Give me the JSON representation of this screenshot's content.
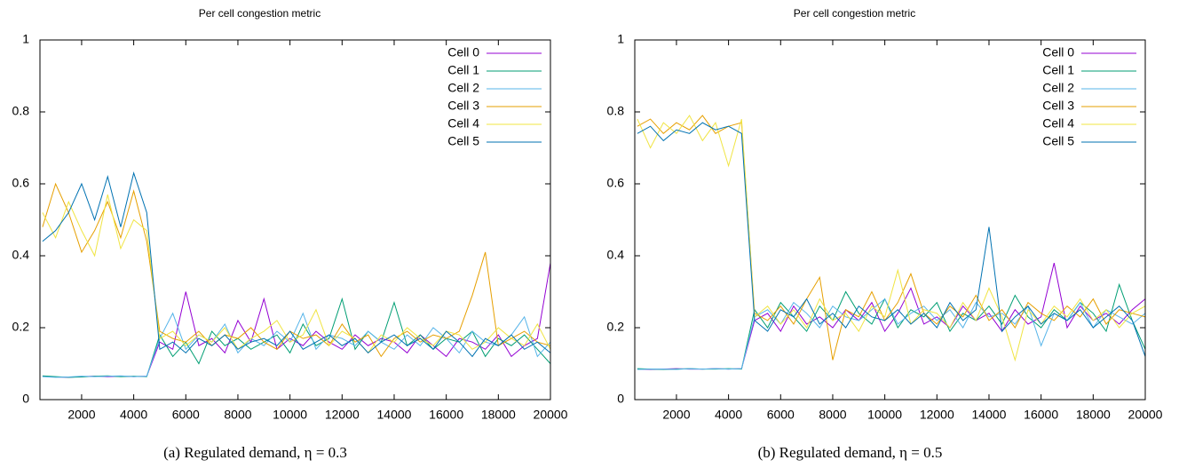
{
  "chart_data": [
    {
      "type": "line",
      "title": "Per cell congestion metric",
      "caption": "(a) Regulated demand, η = 0.3",
      "x": [
        500,
        1000,
        1500,
        2000,
        2500,
        3000,
        3500,
        4000,
        4500,
        5000,
        5500,
        6000,
        6500,
        7000,
        7500,
        8000,
        8500,
        9000,
        9500,
        10000,
        10500,
        11000,
        11500,
        12000,
        12500,
        13000,
        13500,
        14000,
        14500,
        15000,
        15500,
        16000,
        16500,
        17000,
        17500,
        18000,
        18500,
        19000,
        19500,
        20000
      ],
      "xlim": [
        400,
        20000
      ],
      "xticks": [
        2000,
        4000,
        6000,
        8000,
        10000,
        12000,
        14000,
        16000,
        18000,
        20000
      ],
      "ylim": [
        0,
        1
      ],
      "yticks": [
        0,
        0.2,
        0.4,
        0.6,
        0.8,
        1
      ],
      "legend": "top-right",
      "series": [
        {
          "name": "Cell 0",
          "color": "#9400d3",
          "values": [
            0.065,
            0.063,
            0.062,
            0.064,
            0.065,
            0.064,
            0.065,
            0.064,
            0.065,
            0.16,
            0.14,
            0.3,
            0.15,
            0.17,
            0.13,
            0.22,
            0.16,
            0.28,
            0.14,
            0.17,
            0.15,
            0.19,
            0.16,
            0.14,
            0.18,
            0.15,
            0.17,
            0.16,
            0.13,
            0.18,
            0.15,
            0.12,
            0.17,
            0.16,
            0.14,
            0.18,
            0.12,
            0.15,
            0.17,
            0.38
          ]
        },
        {
          "name": "Cell 1",
          "color": "#009e73",
          "values": [
            0.066,
            0.064,
            0.062,
            0.063,
            0.065,
            0.066,
            0.064,
            0.065,
            0.064,
            0.18,
            0.12,
            0.16,
            0.1,
            0.19,
            0.15,
            0.17,
            0.14,
            0.16,
            0.18,
            0.13,
            0.21,
            0.15,
            0.17,
            0.28,
            0.14,
            0.19,
            0.16,
            0.27,
            0.15,
            0.18,
            0.14,
            0.17,
            0.16,
            0.19,
            0.12,
            0.17,
            0.15,
            0.18,
            0.14,
            0.1
          ]
        },
        {
          "name": "Cell 2",
          "color": "#56b4e9",
          "values": [
            0.064,
            0.062,
            0.063,
            0.065,
            0.064,
            0.065,
            0.066,
            0.064,
            0.065,
            0.17,
            0.24,
            0.14,
            0.18,
            0.16,
            0.21,
            0.13,
            0.17,
            0.15,
            0.19,
            0.16,
            0.24,
            0.14,
            0.18,
            0.17,
            0.15,
            0.19,
            0.16,
            0.14,
            0.18,
            0.15,
            0.2,
            0.17,
            0.13,
            0.19,
            0.16,
            0.15,
            0.18,
            0.23,
            0.12,
            0.16
          ]
        },
        {
          "name": "Cell 3",
          "color": "#e69f00",
          "values": [
            0.48,
            0.6,
            0.52,
            0.41,
            0.47,
            0.55,
            0.45,
            0.58,
            0.44,
            0.19,
            0.17,
            0.16,
            0.19,
            0.15,
            0.18,
            0.17,
            0.2,
            0.16,
            0.14,
            0.19,
            0.17,
            0.18,
            0.15,
            0.21,
            0.16,
            0.18,
            0.12,
            0.17,
            0.19,
            0.16,
            0.18,
            0.17,
            0.19,
            0.29,
            0.41,
            0.15,
            0.17,
            0.19,
            0.16,
            0.15
          ]
        },
        {
          "name": "Cell 4",
          "color": "#f0e442",
          "values": [
            0.52,
            0.45,
            0.55,
            0.47,
            0.4,
            0.57,
            0.42,
            0.5,
            0.47,
            0.17,
            0.19,
            0.15,
            0.18,
            0.16,
            0.2,
            0.14,
            0.17,
            0.19,
            0.22,
            0.16,
            0.18,
            0.25,
            0.15,
            0.19,
            0.17,
            0.13,
            0.18,
            0.16,
            0.2,
            0.17,
            0.15,
            0.19,
            0.18,
            0.14,
            0.16,
            0.2,
            0.17,
            0.15,
            0.21,
            0.14
          ]
        },
        {
          "name": "Cell 5",
          "color": "#0072b2",
          "values": [
            0.44,
            0.47,
            0.52,
            0.6,
            0.5,
            0.62,
            0.48,
            0.63,
            0.52,
            0.14,
            0.16,
            0.13,
            0.17,
            0.15,
            0.18,
            0.14,
            0.16,
            0.17,
            0.15,
            0.19,
            0.14,
            0.16,
            0.18,
            0.15,
            0.17,
            0.13,
            0.16,
            0.18,
            0.15,
            0.17,
            0.14,
            0.19,
            0.16,
            0.12,
            0.17,
            0.15,
            0.18,
            0.14,
            0.16,
            0.13
          ]
        }
      ]
    },
    {
      "type": "line",
      "title": "Per cell congestion metric",
      "caption": "(b) Regulated demand, η = 0.5",
      "x": [
        500,
        1000,
        1500,
        2000,
        2500,
        3000,
        3500,
        4000,
        4500,
        5000,
        5500,
        6000,
        6500,
        7000,
        7500,
        8000,
        8500,
        9000,
        9500,
        10000,
        10500,
        11000,
        11500,
        12000,
        12500,
        13000,
        13500,
        14000,
        14500,
        15000,
        15500,
        16000,
        16500,
        17000,
        17500,
        18000,
        18500,
        19000,
        19500,
        20000
      ],
      "xlim": [
        400,
        20000
      ],
      "xticks": [
        2000,
        4000,
        6000,
        8000,
        10000,
        12000,
        14000,
        16000,
        18000,
        20000
      ],
      "ylim": [
        0,
        1
      ],
      "yticks": [
        0,
        0.2,
        0.4,
        0.6,
        0.8,
        1
      ],
      "legend": "top-right",
      "series": [
        {
          "name": "Cell 0",
          "color": "#9400d3",
          "values": [
            0.085,
            0.084,
            0.085,
            0.086,
            0.085,
            0.085,
            0.086,
            0.085,
            0.086,
            0.22,
            0.24,
            0.19,
            0.26,
            0.21,
            0.23,
            0.2,
            0.25,
            0.22,
            0.27,
            0.19,
            0.24,
            0.31,
            0.21,
            0.23,
            0.2,
            0.26,
            0.22,
            0.24,
            0.19,
            0.25,
            0.21,
            0.23,
            0.38,
            0.2,
            0.26,
            0.22,
            0.24,
            0.21,
            0.25,
            0.28
          ]
        },
        {
          "name": "Cell 1",
          "color": "#009e73",
          "values": [
            0.086,
            0.085,
            0.084,
            0.085,
            0.086,
            0.085,
            0.085,
            0.086,
            0.085,
            0.25,
            0.2,
            0.27,
            0.23,
            0.19,
            0.26,
            0.22,
            0.3,
            0.24,
            0.21,
            0.28,
            0.2,
            0.25,
            0.23,
            0.27,
            0.19,
            0.24,
            0.22,
            0.26,
            0.21,
            0.29,
            0.23,
            0.2,
            0.25,
            0.22,
            0.27,
            0.24,
            0.19,
            0.32,
            0.22,
            0.14
          ]
        },
        {
          "name": "Cell 2",
          "color": "#56b4e9",
          "values": [
            0.084,
            0.085,
            0.085,
            0.084,
            0.086,
            0.085,
            0.086,
            0.085,
            0.086,
            0.23,
            0.25,
            0.21,
            0.27,
            0.24,
            0.2,
            0.26,
            0.23,
            0.22,
            0.25,
            0.28,
            0.21,
            0.24,
            0.26,
            0.22,
            0.25,
            0.2,
            0.27,
            0.23,
            0.24,
            0.21,
            0.26,
            0.15,
            0.24,
            0.22,
            0.27,
            0.2,
            0.25,
            0.23,
            0.21,
            0.24
          ]
        },
        {
          "name": "Cell 3",
          "color": "#e69f00",
          "values": [
            0.76,
            0.78,
            0.74,
            0.77,
            0.75,
            0.79,
            0.74,
            0.76,
            0.77,
            0.24,
            0.22,
            0.26,
            0.21,
            0.28,
            0.34,
            0.11,
            0.25,
            0.23,
            0.3,
            0.22,
            0.27,
            0.35,
            0.24,
            0.21,
            0.26,
            0.23,
            0.29,
            0.22,
            0.25,
            0.2,
            0.27,
            0.24,
            0.22,
            0.26,
            0.23,
            0.28,
            0.21,
            0.25,
            0.24,
            0.23
          ]
        },
        {
          "name": "Cell 4",
          "color": "#f0e442",
          "values": [
            0.78,
            0.7,
            0.77,
            0.74,
            0.79,
            0.72,
            0.77,
            0.65,
            0.78,
            0.23,
            0.26,
            0.21,
            0.25,
            0.2,
            0.28,
            0.22,
            0.24,
            0.19,
            0.26,
            0.23,
            0.36,
            0.21,
            0.25,
            0.24,
            0.2,
            0.27,
            0.22,
            0.31,
            0.23,
            0.11,
            0.25,
            0.21,
            0.26,
            0.23,
            0.28,
            0.22,
            0.25,
            0.2,
            0.24,
            0.26
          ]
        },
        {
          "name": "Cell 5",
          "color": "#0072b2",
          "values": [
            0.74,
            0.76,
            0.72,
            0.75,
            0.74,
            0.77,
            0.75,
            0.76,
            0.74,
            0.22,
            0.19,
            0.25,
            0.23,
            0.28,
            0.21,
            0.24,
            0.2,
            0.26,
            0.23,
            0.22,
            0.25,
            0.21,
            0.24,
            0.2,
            0.27,
            0.22,
            0.25,
            0.48,
            0.19,
            0.23,
            0.26,
            0.21,
            0.24,
            0.22,
            0.25,
            0.2,
            0.23,
            0.26,
            0.22,
            0.12
          ]
        }
      ]
    }
  ]
}
